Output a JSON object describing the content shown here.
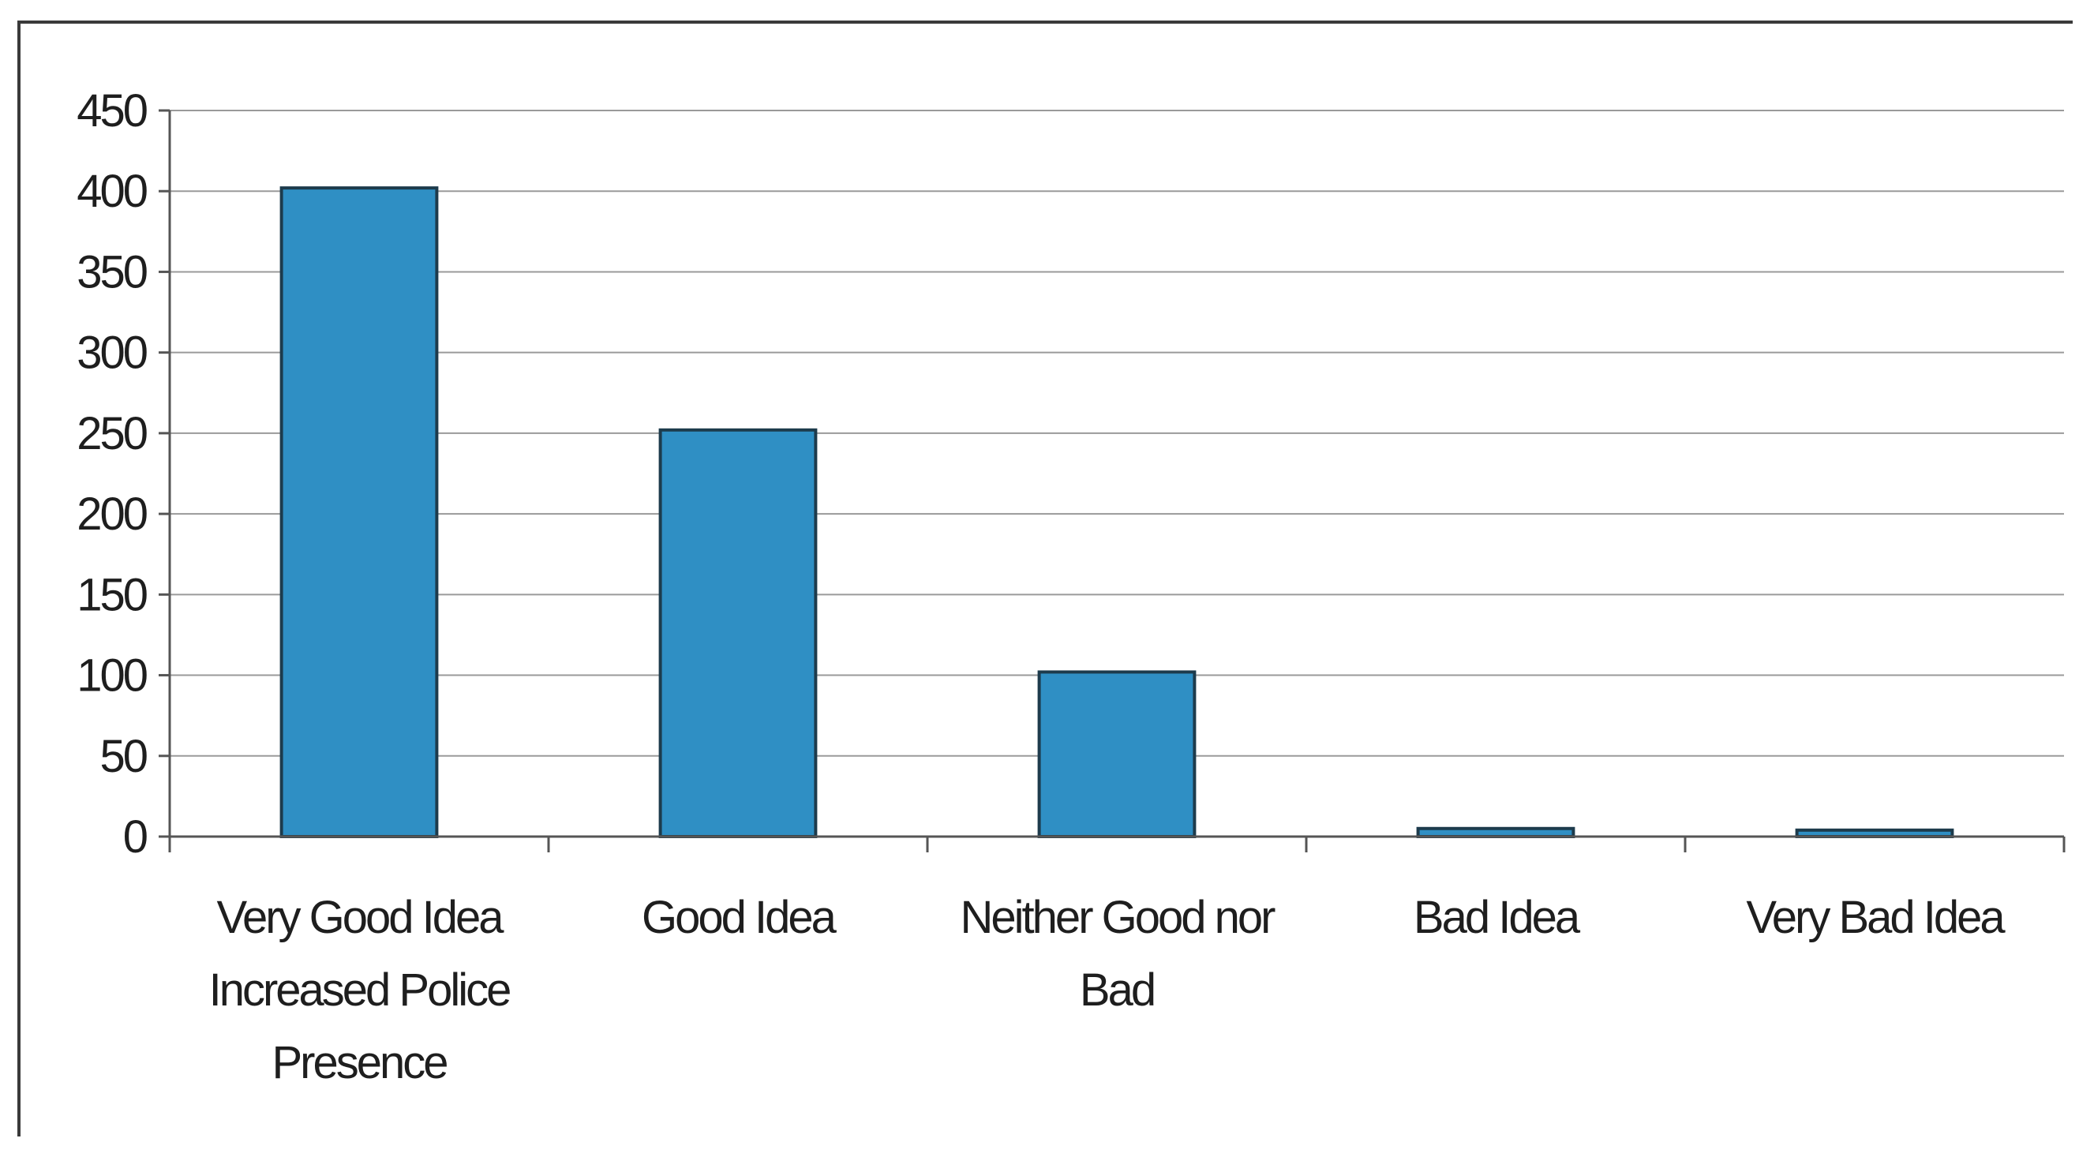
{
  "chart_data": {
    "type": "bar",
    "title": "",
    "xlabel": "",
    "ylabel": "",
    "categories": [
      [
        "Very Good Idea",
        "Increased Police",
        "Presence"
      ],
      [
        "Good Idea"
      ],
      [
        "Neither Good nor",
        "Bad"
      ],
      [
        "Bad Idea"
      ],
      [
        "Very Bad Idea"
      ]
    ],
    "values": [
      402,
      252,
      102,
      5,
      4
    ],
    "ylim": [
      0,
      450
    ],
    "yticks": [
      "0",
      "50",
      "100",
      "150",
      "200",
      "250",
      "300",
      "350",
      "400",
      "450"
    ],
    "grid": true,
    "legend": "none",
    "bar_color": "#2f8fc4",
    "bar_edge_color": "#1d3b4c",
    "grid_color": "#9a9a9a"
  }
}
